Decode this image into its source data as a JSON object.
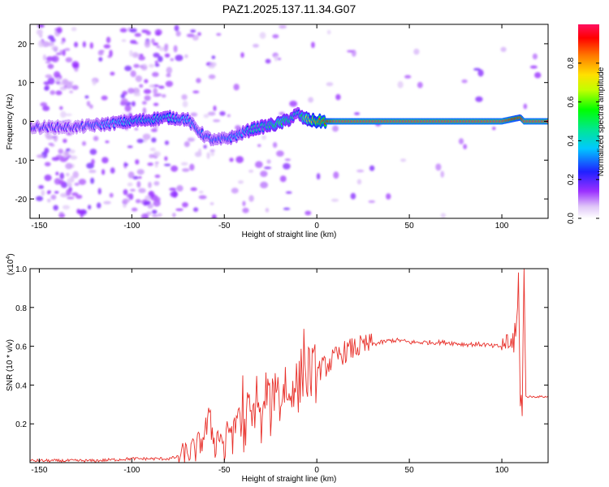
{
  "title": "PAZ1.2025.137.11.34.G07",
  "colors": {
    "snr_line": "#e8302a",
    "axis": "#000000"
  },
  "chart_data": [
    {
      "type": "heatmap",
      "xlabel": "Height of straight line (km)",
      "ylabel": "Frequency (Hz)",
      "xlim": [
        -155,
        125
      ],
      "ylim": [
        -25,
        25
      ],
      "xticks": [
        -150,
        -100,
        -50,
        0,
        50,
        100
      ],
      "yticks": [
        -20,
        -10,
        0,
        10,
        20
      ],
      "colorbar": {
        "label": "Normalized spectral amplitude",
        "range": [
          0,
          1
        ],
        "ticks": [
          0.0,
          0.2,
          0.4,
          0.6,
          0.8
        ],
        "tick_labels": [
          "0.0",
          "0.2",
          "0.4",
          "0.6",
          "0.8"
        ],
        "colormap": "rainbow (white-violet-blue-cyan-green-yellow-red)"
      },
      "ridge": {
        "x": [
          -150,
          -140,
          -130,
          -120,
          -110,
          -100,
          -90,
          -80,
          -70,
          -65,
          -60,
          -55,
          -50,
          -45,
          -40,
          -35,
          -30,
          -25,
          -20,
          -15,
          -12,
          -10,
          -8,
          -5,
          0,
          10,
          30,
          50,
          75,
          100,
          105,
          110,
          112,
          120,
          125
        ],
        "frequency": [
          -1.5,
          -1.5,
          -1.5,
          -1.0,
          -0.5,
          0.0,
          0.5,
          1.0,
          0.5,
          -2.0,
          -4.0,
          -5.0,
          -4.5,
          -4.0,
          -3.0,
          -2.0,
          -1.5,
          -1.0,
          -0.5,
          0.5,
          1.5,
          2.0,
          1.0,
          0.5,
          0.0,
          0.0,
          0.0,
          0.0,
          0.0,
          0.0,
          0.5,
          1.0,
          0.0,
          0.0,
          0.0
        ],
        "amplitude": [
          0.25,
          0.25,
          0.25,
          0.3,
          0.35,
          0.4,
          0.4,
          0.4,
          0.35,
          0.3,
          0.3,
          0.3,
          0.3,
          0.35,
          0.35,
          0.45,
          0.45,
          0.5,
          0.6,
          0.5,
          0.45,
          0.4,
          0.55,
          0.7,
          0.85,
          1.0,
          1.0,
          1.0,
          1.0,
          1.0,
          0.95,
          0.9,
          1.0,
          1.0,
          1.0
        ]
      }
    },
    {
      "type": "line",
      "xlabel": "Height of straight line (km)",
      "ylabel": "SNR (10 * v/v)",
      "yscale_label": "(x10",
      "yscale_exp": "4",
      "yscale_suffix": ")",
      "xlim": [
        -155,
        125
      ],
      "ylim": [
        0,
        1.0
      ],
      "xticks": [
        -150,
        -100,
        -50,
        0,
        50,
        100
      ],
      "yticks": [
        0.2,
        0.4,
        0.6,
        0.8,
        1.0
      ],
      "ytick_labels": [
        "0.2",
        "0.4",
        "0.6",
        "0.8",
        "1.0"
      ],
      "series": [
        {
          "x": [
            -155,
            -140,
            -120,
            -100,
            -90,
            -80,
            -75,
            -70,
            -65,
            -62,
            -60,
            -58,
            -55,
            -52,
            -50,
            -47,
            -45,
            -42,
            -40,
            -37,
            -35,
            -32,
            -30,
            -27,
            -25,
            -22,
            -20,
            -17,
            -15,
            -12,
            -10,
            -8,
            -6,
            -4,
            -2,
            0,
            5,
            10,
            15,
            20,
            25,
            30,
            35,
            40,
            45,
            50,
            60,
            70,
            80,
            90,
            95,
            100,
            102,
            104,
            106,
            107,
            108,
            109,
            110,
            111,
            112,
            113,
            115,
            120,
            125
          ],
          "values": [
            0.01,
            0.01,
            0.01,
            0.02,
            0.02,
            0.02,
            0.03,
            0.05,
            0.07,
            0.12,
            0.17,
            0.22,
            0.1,
            0.16,
            0.05,
            0.2,
            0.12,
            0.3,
            0.08,
            0.3,
            0.2,
            0.38,
            0.15,
            0.4,
            0.25,
            0.45,
            0.3,
            0.42,
            0.3,
            0.45,
            0.35,
            0.5,
            0.42,
            0.48,
            0.45,
            0.47,
            0.5,
            0.54,
            0.57,
            0.59,
            0.6,
            0.61,
            0.62,
            0.63,
            0.63,
            0.62,
            0.62,
            0.62,
            0.61,
            0.61,
            0.6,
            0.6,
            0.62,
            0.58,
            0.65,
            0.55,
            0.72,
            0.88,
            0.28,
            0.45,
            0.95,
            0.34,
            0.34,
            0.34,
            0.34
          ],
          "spikes": [
            {
              "x": -7,
              "value": 0.69
            },
            {
              "x": -40,
              "value": 0.45
            },
            {
              "x": -58,
              "value": 0.26
            },
            {
              "x": 103,
              "value": 0.66
            },
            {
              "x": 107,
              "value": 0.72
            },
            {
              "x": 109,
              "value": 0.98
            },
            {
              "x": 111,
              "value": 0.24
            },
            {
              "x": 112,
              "value": 1.0
            }
          ]
        }
      ]
    }
  ]
}
